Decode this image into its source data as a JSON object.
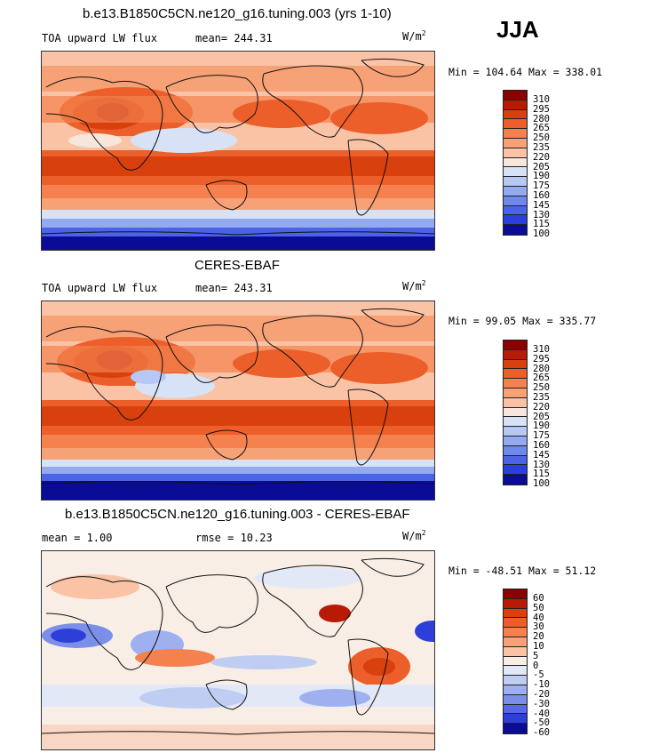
{
  "season": "JJA",
  "panels": [
    {
      "title": "b.e13.B1850C5CN.ne120_g16.tuning.003 (yrs 1-10)",
      "variable": "TOA upward LW flux",
      "stat_left": "",
      "stat": "mean= 244.31",
      "units": "W/m",
      "units_exp": "2",
      "minmax": "Min = 104.64 Max = 338.01",
      "levels": [
        "310",
        "295",
        "280",
        "265",
        "250",
        "235",
        "220",
        "205",
        "190",
        "175",
        "160",
        "145",
        "130",
        "115",
        "100"
      ]
    },
    {
      "title": "CERES-EBAF",
      "variable": "TOA upward LW flux",
      "stat_left": "",
      "stat": "mean= 243.31",
      "units": "W/m",
      "units_exp": "2",
      "minmax": "Min =  99.05 Max = 335.77",
      "levels": [
        "310",
        "295",
        "280",
        "265",
        "250",
        "235",
        "220",
        "205",
        "190",
        "175",
        "160",
        "145",
        "130",
        "115",
        "100"
      ]
    },
    {
      "title": "b.e13.B1850C5CN.ne120_g16.tuning.003 - CERES-EBAF",
      "variable": "",
      "stat_left": "mean =   1.00",
      "stat": "rmse =  10.23",
      "units": "W/m",
      "units_exp": "2",
      "minmax": "Min = -48.51 Max =  51.12",
      "levels": [
        "60",
        "50",
        "40",
        "30",
        "20",
        "10",
        "5",
        "0",
        "-5",
        "-10",
        "-20",
        "-30",
        "-40",
        "-50",
        "-60"
      ]
    }
  ],
  "colors": {
    "abs_scale": [
      "#8a0000",
      "#b81b05",
      "#d8400e",
      "#ec5f2a",
      "#f4814e",
      "#f7a176",
      "#fac3a6",
      "#f7e6dc",
      "#d7e2f6",
      "#b6c8f3",
      "#93aaf0",
      "#6e89ec",
      "#4b63e6",
      "#2b3fdc",
      "#0a0c96"
    ],
    "diff_scale": [
      "#8a0000",
      "#b81b05",
      "#d8400e",
      "#ec5f2a",
      "#f4814e",
      "#f7a176",
      "#fac3a6",
      "#f9eee6",
      "#e2e8f6",
      "#c0cdf2",
      "#9eb0ef",
      "#7b8fe9",
      "#5469e3",
      "#2d3fd8",
      "#0a0c96"
    ]
  }
}
